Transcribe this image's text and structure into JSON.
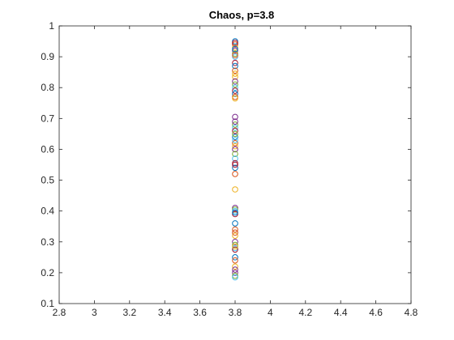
{
  "chart_data": {
    "type": "scatter",
    "title": "Chaos, p=3.8",
    "xlabel": "",
    "ylabel": "",
    "xlim": [
      2.8,
      4.8
    ],
    "ylim": [
      0.1,
      1.0
    ],
    "xticks": [
      "2.8",
      "3",
      "3.2",
      "3.4",
      "3.6",
      "3.8",
      "4",
      "4.2",
      "4.4",
      "4.6",
      "4.8"
    ],
    "yticks": [
      "0.1",
      "0.2",
      "0.3",
      "0.4",
      "0.5",
      "0.6",
      "0.7",
      "0.8",
      "0.9",
      "1"
    ],
    "grid": false,
    "legend": "none",
    "marker": "open-circle",
    "palette": [
      "#0072BD",
      "#D95319",
      "#EDB120",
      "#7E2F8E",
      "#77AC30",
      "#4DBEEE",
      "#A2142F"
    ],
    "x": [
      3.8,
      3.8,
      3.8,
      3.8,
      3.8,
      3.8,
      3.8,
      3.8,
      3.8,
      3.8,
      3.8,
      3.8,
      3.8,
      3.8,
      3.8,
      3.8,
      3.8,
      3.8,
      3.8,
      3.8,
      3.8,
      3.8,
      3.8,
      3.8,
      3.8,
      3.8,
      3.8,
      3.8,
      3.8,
      3.8,
      3.8,
      3.8,
      3.8,
      3.8,
      3.8,
      3.8,
      3.8,
      3.8,
      3.8,
      3.8,
      3.8,
      3.8,
      3.8,
      3.8,
      3.8,
      3.8,
      3.8,
      3.8,
      3.8,
      3.8,
      3.8,
      3.8,
      3.8,
      3.8,
      3.8,
      3.8,
      3.8,
      3.8,
      3.8,
      3.8
    ],
    "y": [
      0.95,
      0.94,
      0.93,
      0.92,
      0.91,
      0.9,
      0.88,
      0.87,
      0.855,
      0.835,
      0.82,
      0.81,
      0.8,
      0.79,
      0.78,
      0.77,
      0.765,
      0.705,
      0.68,
      0.67,
      0.66,
      0.64,
      0.62,
      0.61,
      0.6,
      0.585,
      0.57,
      0.555,
      0.54,
      0.52,
      0.47,
      0.41,
      0.405,
      0.4,
      0.39,
      0.36,
      0.34,
      0.32,
      0.3,
      0.29,
      0.28,
      0.275,
      0.25,
      0.24,
      0.22,
      0.2,
      0.19,
      0.185,
      0.945,
      0.925,
      0.905,
      0.845,
      0.69,
      0.65,
      0.63,
      0.55,
      0.395,
      0.33,
      0.285,
      0.21
    ]
  }
}
